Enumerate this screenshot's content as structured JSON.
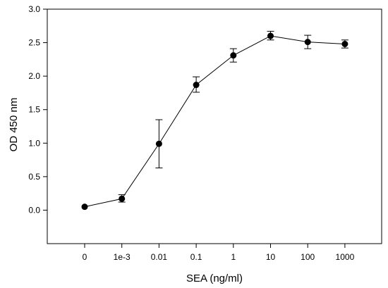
{
  "chart_data": {
    "type": "line",
    "xlabel": "SEA (ng/ml)",
    "ylabel": "OD 450 nm",
    "categories": [
      "0",
      "1e-3",
      "0.01",
      "0.1",
      "1",
      "10",
      "100",
      "1000"
    ],
    "values": [
      0.05,
      0.17,
      0.99,
      1.87,
      2.31,
      2.6,
      2.51,
      2.48
    ],
    "error_low": [
      0.05,
      0.12,
      0.63,
      1.76,
      2.21,
      2.54,
      2.41,
      2.42
    ],
    "error_high": [
      0.05,
      0.23,
      1.35,
      1.99,
      2.41,
      2.67,
      2.61,
      2.54
    ],
    "ylim": [
      -0.5,
      3.0
    ],
    "yticks": [
      "0.0",
      "0.5",
      "1.0",
      "1.5",
      "2.0",
      "2.5",
      "3.0"
    ],
    "ytick_values": [
      0.0,
      0.5,
      1.0,
      1.5,
      2.0,
      2.5,
      3.0
    ],
    "grid": false,
    "marker": "filled-circle",
    "colors": {
      "line": "#000000",
      "marker": "#000000",
      "axis": "#000000"
    }
  }
}
